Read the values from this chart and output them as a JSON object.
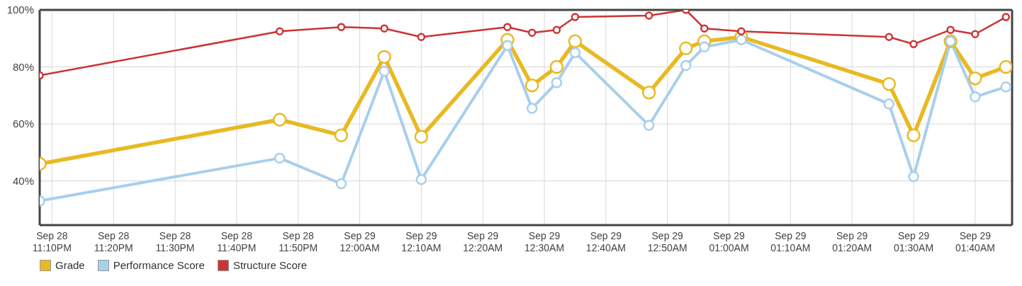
{
  "chart_data": {
    "type": "line",
    "x": [
      "--09-28T23:08",
      "--09-28T23:47",
      "--09-28T23:57",
      "--09-29T00:04",
      "--09-29T00:10",
      "--09-29T00:24",
      "--09-29T00:28",
      "--09-29T00:32",
      "--09-29T00:35",
      "--09-29T00:47",
      "--09-29T00:53",
      "--09-29T00:56",
      "--09-29T01:02",
      "--09-29T01:26",
      "--09-29T01:30",
      "--09-29T01:36",
      "--09-29T01:40",
      "--09-29T01:45"
    ],
    "series": [
      {
        "name": "Grade",
        "color": "#e8b923",
        "values": [
          46,
          61.5,
          56,
          83.5,
          55.5,
          89.5,
          73.5,
          80,
          89,
          71,
          86.5,
          89,
          90.5,
          74,
          56,
          89,
          76,
          80
        ]
      },
      {
        "name": "Performance Score",
        "color": "#a8cfec",
        "values": [
          33,
          48,
          39,
          78.5,
          40.5,
          87.5,
          65.5,
          74.5,
          85,
          59.5,
          80.5,
          87,
          89.5,
          67,
          41.5,
          89,
          69.5,
          73
        ]
      },
      {
        "name": "Structure Score",
        "color": "#cc3333",
        "values": [
          77,
          92.5,
          94,
          93.5,
          90.5,
          94,
          92,
          93,
          97.5,
          98,
          100,
          93.5,
          92.5,
          90.5,
          88,
          93,
          91.5,
          97.5
        ]
      }
    ],
    "xlim": [
      "--09-28T23:08",
      "--09-29T01:46"
    ],
    "xticks": [
      {
        "value": "--09-28T23:10",
        "label": "Sep 28\n11:10PM"
      },
      {
        "value": "--09-28T23:20",
        "label": "Sep 28\n11:20PM"
      },
      {
        "value": "--09-28T23:30",
        "label": "Sep 28\n11:30PM"
      },
      {
        "value": "--09-28T23:40",
        "label": "Sep 28\n11:40PM"
      },
      {
        "value": "--09-28T23:50",
        "label": "Sep 28\n11:50PM"
      },
      {
        "value": "--09-29T00:00",
        "label": "Sep 29\n12:00AM"
      },
      {
        "value": "--09-29T00:10",
        "label": "Sep 29\n12:10AM"
      },
      {
        "value": "--09-29T00:20",
        "label": "Sep 29\n12:20AM"
      },
      {
        "value": "--09-29T00:30",
        "label": "Sep 29\n12:30AM"
      },
      {
        "value": "--09-29T00:40",
        "label": "Sep 29\n12:40AM"
      },
      {
        "value": "--09-29T00:50",
        "label": "Sep 29\n12:50AM"
      },
      {
        "value": "--09-29T01:00",
        "label": "Sep 29\n01:00AM"
      },
      {
        "value": "--09-29T01:10",
        "label": "Sep 29\n01:10AM"
      },
      {
        "value": "--09-29T01:20",
        "label": "Sep 29\n01:20AM"
      },
      {
        "value": "--09-29T01:30",
        "label": "Sep 29\n01:30AM"
      },
      {
        "value": "--09-29T01:40",
        "label": "Sep 29\n01:40AM"
      }
    ],
    "ylim": [
      24.5,
      100
    ],
    "yticks": [
      {
        "value": 40,
        "label": "40%"
      },
      {
        "value": 60,
        "label": "60%"
      },
      {
        "value": 80,
        "label": "80%"
      },
      {
        "value": 100,
        "label": "100%"
      }
    ],
    "grid": true,
    "legend": "bottom left",
    "marker": "circle",
    "line_style": "solid"
  }
}
